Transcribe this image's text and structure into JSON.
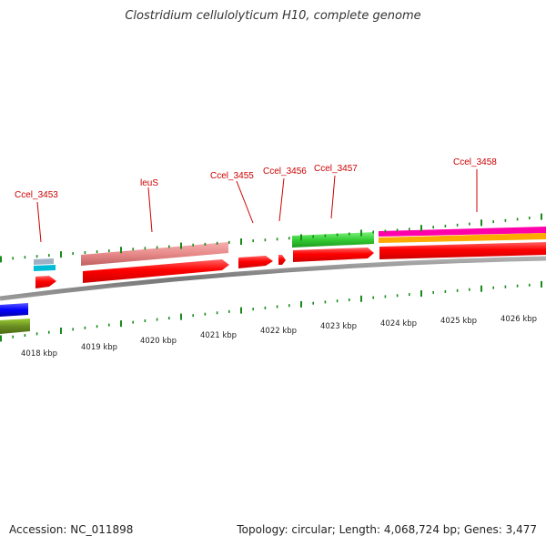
{
  "title": "Clostridium cellulolyticum H10, complete genome",
  "footer": {
    "accession": "Accession: NC_011898",
    "summary": "Topology: circular; Length: 4,068,724 bp; Genes: 3,477"
  },
  "colors": {
    "backbone": "#8a8a8a",
    "tick": "#1a8a1a",
    "label": "#cc0000",
    "cds_red": "#ff0000",
    "gene_pink": "#e88a8a",
    "gene_green": "#33cc33",
    "gene_magenta": "#ff00aa",
    "gene_orange": "#ffaa00",
    "gene_blue": "#0000ff",
    "gene_olive": "#6b8e23",
    "gene_cyan": "#00bcd4",
    "gene_grey": "#a0b0c0"
  },
  "scale_labels": [
    "4018 kbp",
    "4019 kbp",
    "4020 kbp",
    "4021 kbp",
    "4022 kbp",
    "4023 kbp",
    "4024 kbp",
    "4025 kbp",
    "4026 kbp"
  ],
  "gene_labels": [
    "Ccel_3453",
    "leuS",
    "Ccel_3455",
    "Ccel_3456",
    "Ccel_3457",
    "Ccel_3458"
  ]
}
